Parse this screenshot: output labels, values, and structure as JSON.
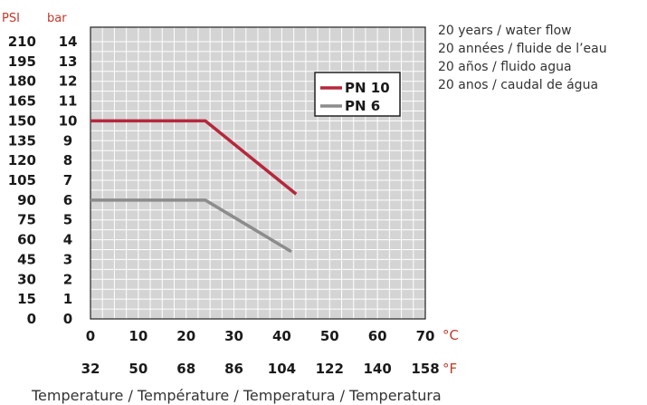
{
  "chart_data": {
    "type": "line",
    "y_units": {
      "psi": "PSI",
      "bar": "bar"
    },
    "y_ticks_bar": [
      "0",
      "1",
      "2",
      "3",
      "4",
      "5",
      "6",
      "7",
      "8",
      "9",
      "10",
      "11",
      "12",
      "13",
      "14"
    ],
    "y_ticks_psi": [
      "0",
      "15",
      "30",
      "45",
      "60",
      "75",
      "90",
      "105",
      "120",
      "135",
      "150",
      "165",
      "180",
      "195",
      "210"
    ],
    "x_ticks_c": [
      "0",
      "10",
      "20",
      "30",
      "40",
      "50",
      "60",
      "70"
    ],
    "x_ticks_f": [
      "32",
      "50",
      "68",
      "86",
      "104",
      "122",
      "140",
      "158"
    ],
    "x_unit_c": "°C",
    "x_unit_f": "°F",
    "xlabel": "Temperature  / Température / Temperatura / Temperatura",
    "xlim": [
      0,
      70
    ],
    "ylim": [
      0,
      14
    ],
    "grid": true,
    "legend_position": "top-right",
    "series": [
      {
        "name": "PN 10",
        "color": "#b5283c",
        "points": [
          [
            0,
            10
          ],
          [
            24,
            10
          ],
          [
            43,
            6.3
          ]
        ]
      },
      {
        "name": "PN 6",
        "color": "#8c8c8c",
        "points": [
          [
            0,
            6
          ],
          [
            24,
            6
          ],
          [
            42,
            3.4
          ]
        ]
      }
    ]
  },
  "notes": [
    "20 years / water flow",
    "20 années / fluide de l’eau",
    "20 años / fluido agua",
    "20 anos / caudal de água"
  ]
}
